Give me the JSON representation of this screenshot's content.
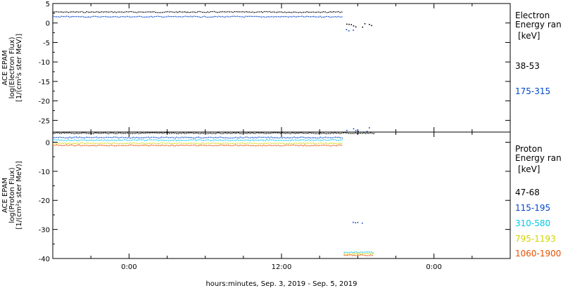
{
  "chart_data": [
    {
      "type": "scatter",
      "panel": "electron",
      "ylabel": [
        "ACE EPAM",
        "log(Electron Flux)",
        "[1/(cm²s ster MeV)]"
      ],
      "ylim": [
        -28,
        5
      ],
      "yticks": [
        5,
        0,
        -5,
        -10,
        -15,
        -20,
        -25
      ],
      "xlim": [
        -6,
        30
      ],
      "legend": {
        "title": [
          "Electron",
          "Energy ran"
        ],
        "unit": "[keV]",
        "placement": "right"
      },
      "series": [
        {
          "name": "38-53",
          "color": "#000000",
          "segments": [
            {
              "x": [
                -6,
                16.9
              ],
              "y": 2.8
            },
            {
              "x": [
                17.1,
                19.4
              ],
              "y": -0.5,
              "scatter": true
            }
          ]
        },
        {
          "name": "175-315",
          "color": "#0047c8",
          "segments": [
            {
              "x": [
                -6,
                16.9
              ],
              "y": 1.6
            },
            {
              "x": [
                16.9,
                17.8
              ],
              "y": -2.0,
              "scatter": true
            },
            {
              "x": [
                17.1,
                19.4
              ],
              "y": -27.3,
              "scatter": true
            }
          ]
        }
      ]
    },
    {
      "type": "scatter",
      "panel": "proton",
      "ylabel": [
        "ACE EPAM",
        "log(Proton Flux)",
        "[1/(cm²s ster MeV)]"
      ],
      "ylim": [
        -40,
        3.5
      ],
      "yticks": [
        0,
        -10,
        -20,
        -30,
        -40
      ],
      "xlim": [
        -6,
        30
      ],
      "xticks": [
        0,
        12,
        24
      ],
      "xticklabels": [
        "0:00",
        "12:00",
        "0:00"
      ],
      "xlabel": "hours:minutes, Sep.  3, 2019 - Sep.  5, 2019",
      "legend": {
        "title": [
          "Proton",
          "Energy ran"
        ],
        "unit": "[keV]",
        "placement": "right"
      },
      "series": [
        {
          "name": "47-68",
          "color": "#000000",
          "segments": [
            {
              "x": [
                -6,
                19.4
              ],
              "y": 3.1
            }
          ]
        },
        {
          "name": "115-195",
          "color": "#0047c8",
          "segments": [
            {
              "x": [
                -6,
                16.9
              ],
              "y": 1.6
            },
            {
              "x": [
                17.6,
                18.4
              ],
              "y": -28.0,
              "scatter": true
            }
          ]
        },
        {
          "name": "310-580",
          "color": "#00c8e6",
          "segments": [
            {
              "x": [
                -6,
                16.9
              ],
              "y": 0.7
            },
            {
              "x": [
                16.9,
                19.3
              ],
              "y": -37.9
            }
          ]
        },
        {
          "name": "795-1193",
          "color": "#d2d200",
          "segments": [
            {
              "x": [
                -6,
                16.9
              ],
              "y": -0.4
            },
            {
              "x": [
                16.9,
                19.3
              ],
              "y": -38.4
            }
          ]
        },
        {
          "name": "1060-1900",
          "color": "#e65000",
          "segments": [
            {
              "x": [
                -6,
                16.9
              ],
              "y": -1.1
            },
            {
              "x": [
                16.9,
                19.3
              ],
              "y": -38.9
            }
          ]
        }
      ]
    }
  ]
}
